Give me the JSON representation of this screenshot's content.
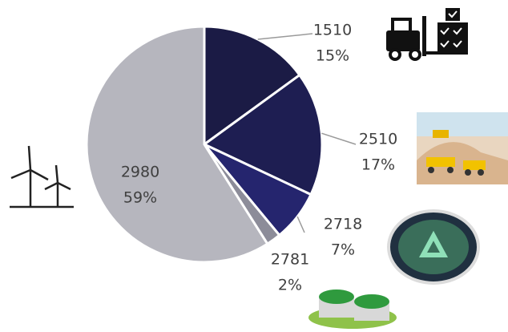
{
  "chart_data": {
    "type": "pie",
    "categories": [
      "1510",
      "2510",
      "2718",
      "2781",
      "2980"
    ],
    "values": [
      15,
      17,
      7,
      2,
      59
    ],
    "value_labels": [
      "15%",
      "17%",
      "7%",
      "2%",
      "59%"
    ],
    "colors": [
      "#1b1b45",
      "#1e1e52",
      "#25256e",
      "#8c8c99",
      "#b6b6be"
    ]
  }
}
